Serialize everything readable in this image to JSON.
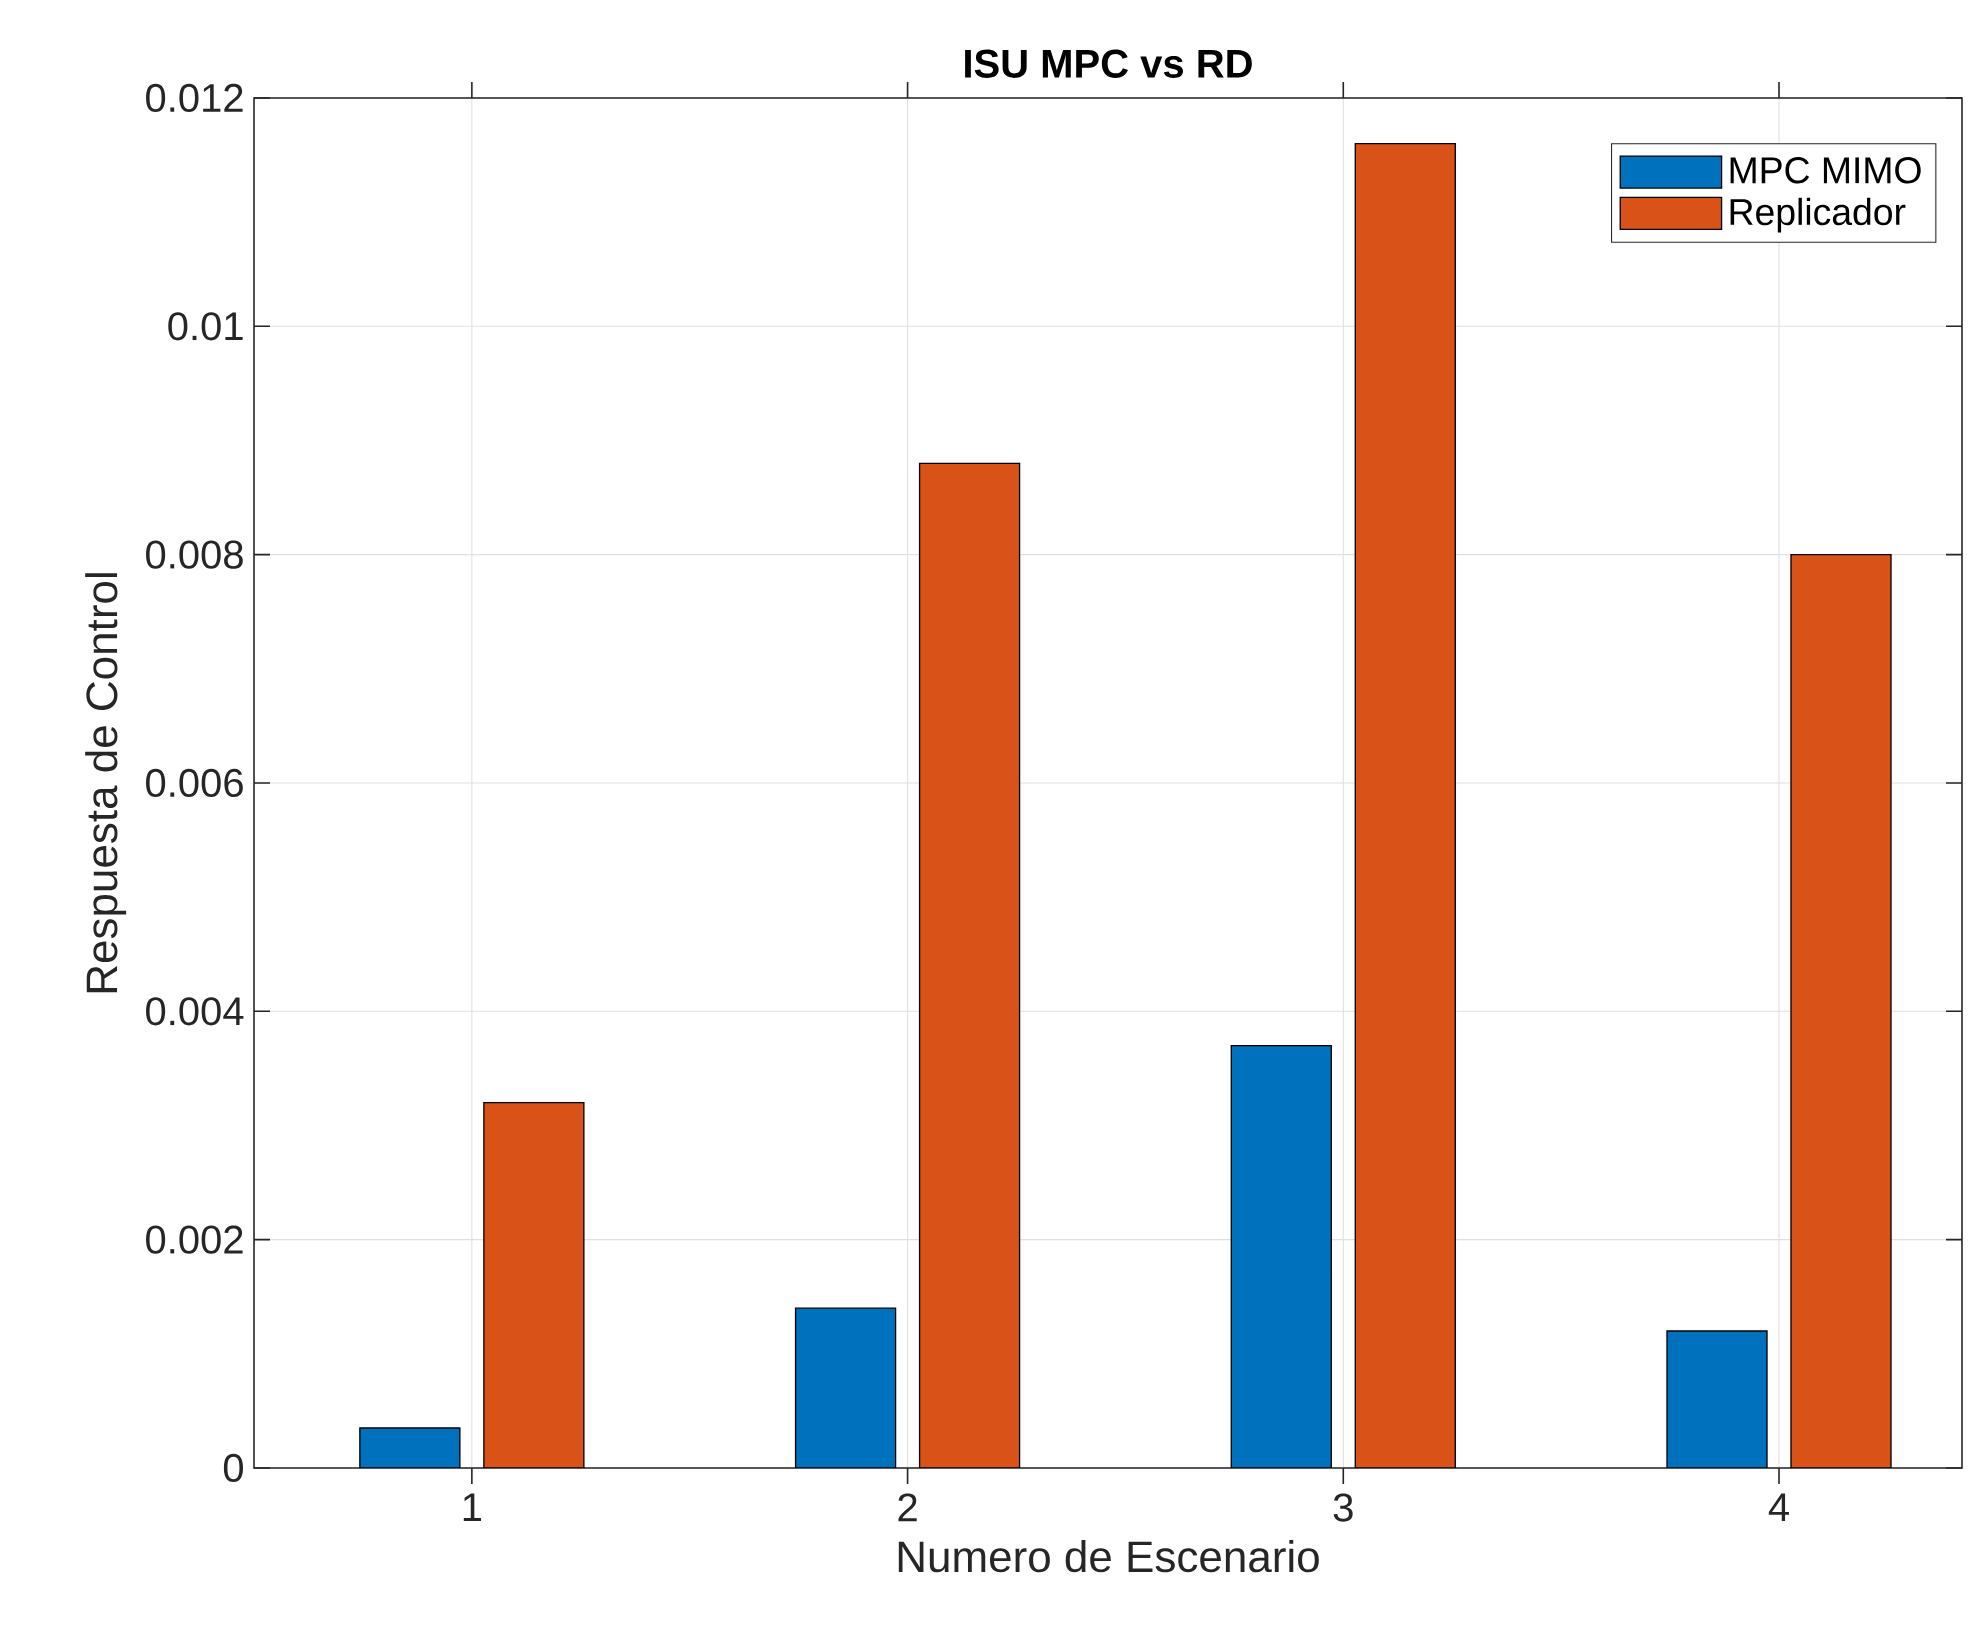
{
  "chart_data": {
    "type": "bar",
    "title": "ISU MPC vs RD",
    "xlabel": "Numero de Escenario",
    "ylabel": "Respuesta de Control",
    "categories": [
      "1",
      "2",
      "3",
      "4"
    ],
    "series": [
      {
        "name": "MPC MIMO",
        "color": "#0072bd",
        "values": [
          0.00035,
          0.0014,
          0.0037,
          0.0012
        ]
      },
      {
        "name": "Replicador",
        "color": "#d95319",
        "values": [
          0.0032,
          0.0088,
          0.0116,
          0.008
        ]
      }
    ],
    "ylim": [
      0,
      0.012
    ],
    "yticks": [
      0,
      0.002,
      0.004,
      0.006,
      0.008,
      0.01,
      0.012
    ],
    "grid": true,
    "legend": "top right"
  }
}
